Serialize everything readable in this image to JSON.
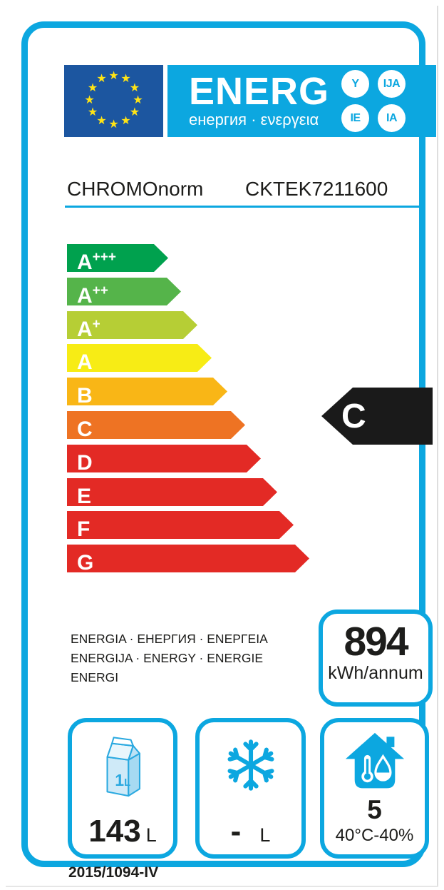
{
  "header": {
    "energ_word": "ENERG",
    "subtitle": "енергия · ενεργεια",
    "suffix_circles": [
      "Y",
      "IJA",
      "IE",
      "IA"
    ]
  },
  "product": {
    "brand": "CHROMOnorm",
    "model": "CKTEK7211600"
  },
  "scale": {
    "classes": [
      {
        "label": "A",
        "sup": "+++",
        "color": "#00A14E"
      },
      {
        "label": "A",
        "sup": "++",
        "color": "#55B44A"
      },
      {
        "label": "A",
        "sup": "+",
        "color": "#B6CE35"
      },
      {
        "label": "A",
        "sup": "",
        "color": "#F7EC15"
      },
      {
        "label": "B",
        "sup": "",
        "color": "#F9B616"
      },
      {
        "label": "C",
        "sup": "",
        "color": "#EE7323"
      },
      {
        "label": "D",
        "sup": "",
        "color": "#E32A25"
      },
      {
        "label": "E",
        "sup": "",
        "color": "#E32A25"
      },
      {
        "label": "F",
        "sup": "",
        "color": "#E32A25"
      },
      {
        "label": "G",
        "sup": "",
        "color": "#E32A25"
      }
    ]
  },
  "rating": {
    "value": "C"
  },
  "energy_words": {
    "lines": [
      "ENERGIA · ЕНЕРГИЯ · ENEPΓEIA",
      "ENERGIJA · ENERGY · ENERGIE",
      "ENERGI"
    ]
  },
  "consumption": {
    "value": "894",
    "unit": "kWh/annum"
  },
  "compartments": {
    "fridge": {
      "icon": "milk-carton-icon",
      "carton_value": "1",
      "carton_unit": "L",
      "value": "143",
      "unit": "L"
    },
    "freezer": {
      "icon": "snowflake-icon",
      "value": "-",
      "unit": "L"
    },
    "climate": {
      "icon": "house-temperature-humidity-icon",
      "value": "5",
      "condition": "40°C-40%"
    }
  },
  "regulation": "2015/1094-IV",
  "colors": {
    "accent_cyan": "#0CA7E0",
    "eu_flag_blue": "#1C56A0",
    "star_yellow": "#FFE415",
    "text_dark": "#1D1D1B",
    "rating_black": "#1A1A1A"
  }
}
